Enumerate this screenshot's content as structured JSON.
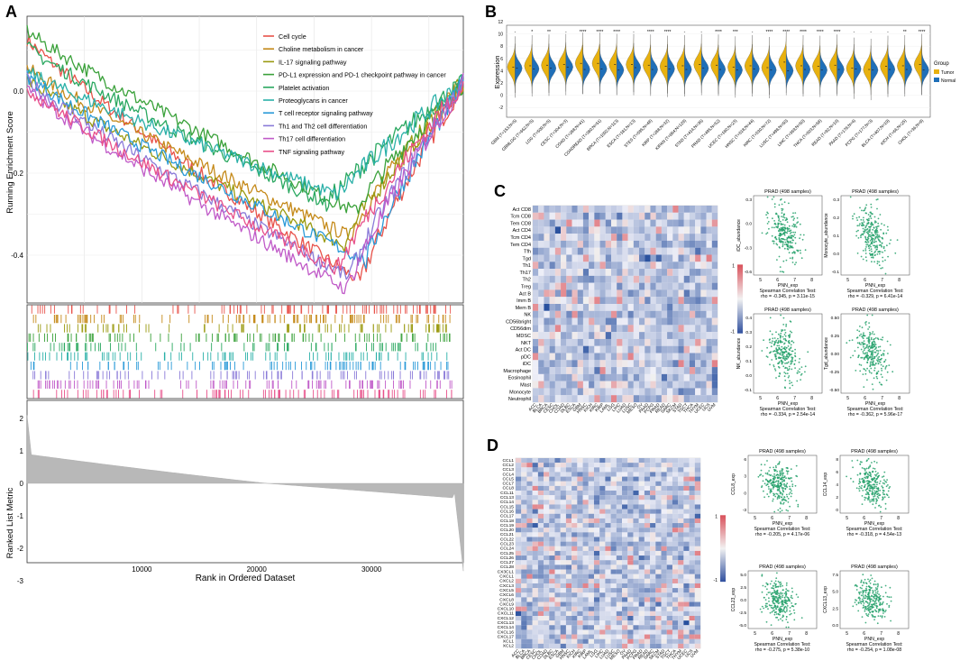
{
  "panel_labels": {
    "a": "A",
    "b": "B",
    "c": "C",
    "d": "D"
  },
  "colors": {
    "tumor": "#e8b10f",
    "normal": "#1f6fb8",
    "scatter": "#23a06a",
    "heat_hi": "#d9505a",
    "heat_lo": "#2f4f9e"
  },
  "chart_data": [
    {
      "id": "A",
      "type": "line",
      "title": "",
      "ylabel": "Running Enrichment Score",
      "ylabel2": "Ranked List Metric",
      "xlabel": "Rank in Ordered Dataset",
      "x_ticks": [
        "10000",
        "20000",
        "30000"
      ],
      "y_ticks": [
        "0.0",
        "-0.2",
        "-0.4"
      ],
      "y_ticks2": [
        "2",
        "1",
        "0",
        "-1",
        "-2",
        "-3"
      ],
      "series": [
        {
          "name": "Cell cycle",
          "color": "#e8524a",
          "min_rank": 29000,
          "min_es": -0.47,
          "start": 0.12
        },
        {
          "name": "Choline metabolism in cancer",
          "color": "#c58a1a",
          "min_rank": 28000,
          "min_es": -0.36,
          "start": 0.05
        },
        {
          "name": "IL-17 signaling pathway",
          "color": "#9a9a10",
          "min_rank": 27500,
          "min_es": -0.38,
          "start": 0.02
        },
        {
          "name": "PD-L1 expression and PD-1 checkpoint pathway in cancer",
          "color": "#3aa13a",
          "min_rank": 28500,
          "min_es": -0.3,
          "start": 0.14
        },
        {
          "name": "Platelet activation",
          "color": "#2aa860",
          "min_rank": 26000,
          "min_es": -0.28,
          "start": 0.1
        },
        {
          "name": "Proteoglycans in cancer",
          "color": "#2ab0a8",
          "min_rank": 27000,
          "min_es": -0.26,
          "start": 0.04
        },
        {
          "name": "T cell receptor signaling pathway",
          "color": "#2a9ad8",
          "min_rank": 29500,
          "min_es": -0.42,
          "start": 0.03
        },
        {
          "name": "Th1 and Th2 cell differentiation",
          "color": "#8a7ad8",
          "min_rank": 28000,
          "min_es": -0.46,
          "start": 0.02
        },
        {
          "name": "Th17 cell differentiation",
          "color": "#c05ac8",
          "min_rank": 27800,
          "min_es": -0.49,
          "start": 0.0
        },
        {
          "name": "TNF signaling pathway",
          "color": "#e8508a",
          "min_rank": 27000,
          "min_es": -0.44,
          "start": 0.0
        }
      ]
    },
    {
      "id": "B",
      "type": "violin",
      "ylabel": "Expression",
      "y_ticks": [
        "12",
        "10",
        "8",
        "6",
        "4",
        "2",
        "0",
        "-2"
      ],
      "legend_title": "Group",
      "legend": [
        "Tumor",
        "Normal"
      ],
      "categories": [
        "GBM (T=153;N=5)",
        "GBMLGG (T=662;N=5)",
        "LGG (T=509;N=5)",
        "CESC (T=304;N=3)",
        "COAD (T=288;N=41)",
        "COADREAD (T=380;N=51)",
        "BRCA (T=1092;N=113)",
        "ESCA (T=181;N=13)",
        "STES (T=595;N=48)",
        "KIRP (T=288;N=32)",
        "KIPAN (T=884;N=129)",
        "STAD (T=414;N=36)",
        "PRAD (T=495;N=52)",
        "UCEC (T=180;N=23)",
        "HNSC (T=518;N=44)",
        "KIRC (T=530;N=72)",
        "LUSC (T=498;N=50)",
        "LIHC (T=369;N=50)",
        "THCA (T=503;N=58)",
        "READ (T=92;N=10)",
        "PAAD (T=178;N=4)",
        "PCPG (T=177;N=3)",
        "BLCA (T=407;N=19)",
        "KICH (T=66;N=25)",
        "CHOL (T=36;N=9)"
      ],
      "significance": [
        "-",
        "*",
        "**",
        "-",
        "****",
        "****",
        "****",
        "-",
        "****",
        "****",
        "-",
        "-",
        "****",
        "***",
        "-",
        "****",
        "****",
        "****",
        "****",
        "****",
        "-",
        "-",
        "-",
        "**",
        "****"
      ],
      "tumor_median": [
        4.6,
        4.8,
        4.9,
        5.0,
        5.2,
        5.2,
        5.0,
        5.0,
        4.9,
        4.7,
        4.8,
        5.0,
        4.9,
        4.6,
        4.8,
        4.5,
        5.4,
        4.8,
        4.7,
        4.9,
        4.4,
        4.2,
        4.7,
        4.8,
        5.0
      ],
      "normal_median": [
        4.4,
        4.3,
        4.4,
        4.6,
        4.2,
        4.3,
        4.1,
        4.5,
        4.2,
        4.3,
        4.2,
        4.4,
        4.2,
        4.1,
        4.3,
        4.1,
        4.0,
        4.2,
        4.1,
        4.2,
        4.3,
        4.1,
        4.2,
        4.2,
        4.1
      ]
    },
    {
      "id": "C-heatmap",
      "type": "heatmap",
      "rows": [
        "Act CD8",
        "Tcm CD8",
        "Tem CD8",
        "Act CD4",
        "Tcm CD4",
        "Tem CD4",
        "Tfh",
        "Tgd",
        "Th1",
        "Th17",
        "Th2",
        "Treg",
        "Act B",
        "Imm B",
        "Mem B",
        "NK",
        "CD56bright",
        "CD56dim",
        "MDSC",
        "NKT",
        "Act DC",
        "pDC",
        "iDC",
        "Macrophage",
        "Eosinophil",
        "Mast",
        "Monocyte",
        "Neutrophil"
      ],
      "columns": [
        "ACC",
        "BLCA",
        "BRCA",
        "CESC",
        "CHOL",
        "COAD",
        "DLBC",
        "ESCA",
        "GBM",
        "HNSC",
        "KICH",
        "KIRC",
        "KIRP",
        "LAML",
        "LGG",
        "LIHC",
        "LUAD",
        "LUSC",
        "MESO",
        "OV",
        "PAAD",
        "PCPG",
        "PRAD",
        "READ",
        "SARC",
        "SKCM",
        "STAD",
        "TGCT",
        "THCA",
        "THYM",
        "UCEC",
        "UCS",
        "UVM"
      ],
      "colorbar_ticks": [
        "1",
        "-1"
      ]
    },
    {
      "id": "C-scatter",
      "type": "scatter",
      "plots": [
        {
          "title": "PRAD (498 samples)",
          "xlabel": "PNN_exp",
          "ylabel": "iDC_abundance",
          "stat1": "Spearman Correlation Test:",
          "stat2": "rho = -0.345, p = 3.11e-15",
          "x_ticks": [
            "5",
            "6",
            "7",
            "8"
          ],
          "y_ticks": [
            "0.3",
            "0.0",
            "-0.3",
            "-0.6"
          ],
          "rho": -0.345
        },
        {
          "title": "PRAD (498 samples)",
          "xlabel": "PNN_exp",
          "ylabel": "Monocyte_abundance",
          "stat1": "Spearman Correlation Test:",
          "stat2": "rho = -0.329, p = 6.41e-14",
          "x_ticks": [
            "5",
            "6",
            "7",
            "8"
          ],
          "y_ticks": [
            "0.3",
            "0.2",
            "0.1",
            "0.0",
            "-0.1"
          ],
          "rho": -0.329
        },
        {
          "title": "PRAD (498 samples)",
          "xlabel": "PNN_exp",
          "ylabel": "NK_abundance",
          "stat1": "Spearman Correlation Test:",
          "stat2": "rho = -0.334, p = 2.54e-14",
          "x_ticks": [
            "5",
            "6",
            "7",
            "8"
          ],
          "y_ticks": [
            "0.4",
            "0.3",
            "0.2",
            "0.1",
            "0.0",
            "-0.1"
          ],
          "rho": -0.334
        },
        {
          "title": "PRAD (498 samples)",
          "xlabel": "PNN_exp",
          "ylabel": "Tgd_abundance",
          "stat1": "Spearman Correlation Test:",
          "stat2": "rho = -0.362, p = 5.96e-17",
          "x_ticks": [
            "5",
            "6",
            "7",
            "8"
          ],
          "y_ticks": [
            "0.50",
            "0.25",
            "0.00",
            "-0.25",
            "-0.50"
          ],
          "rho": -0.362
        }
      ]
    },
    {
      "id": "D-heatmap",
      "type": "heatmap",
      "rows": [
        "CCL1",
        "CCL2",
        "CCL3",
        "CCL4",
        "CCL5",
        "CCL7",
        "CCL8",
        "CCL11",
        "CCL13",
        "CCL14",
        "CCL15",
        "CCL16",
        "CCL17",
        "CCL18",
        "CCL19",
        "CCL20",
        "CCL21",
        "CCL22",
        "CCL23",
        "CCL24",
        "CCL25",
        "CCL26",
        "CCL27",
        "CCL28",
        "CX3CL1",
        "CXCL1",
        "CXCL2",
        "CXCL3",
        "CXCL5",
        "CXCL6",
        "CXCL8",
        "CXCL9",
        "CXCL10",
        "CXCL11",
        "CXCL12",
        "CXCL13",
        "CXCL14",
        "CXCL16",
        "CXCL17",
        "XCL1",
        "XCL2"
      ],
      "columns": [
        "ACC",
        "BLCA",
        "BRCA",
        "CESC",
        "CHOL",
        "COAD",
        "DLBC",
        "ESCA",
        "GBM",
        "HNSC",
        "KICH",
        "KIRC",
        "KIRP",
        "LAML",
        "LGG",
        "LIHC",
        "LUAD",
        "LUSC",
        "MESO",
        "OV",
        "PAAD",
        "PCPG",
        "PRAD",
        "READ",
        "SARC",
        "SKCM",
        "STAD",
        "TGCT",
        "THCA",
        "THYM",
        "UCEC",
        "UCS",
        "UVM"
      ],
      "colorbar_ticks": [
        "1",
        "-1"
      ]
    },
    {
      "id": "D-scatter",
      "type": "scatter",
      "plots": [
        {
          "title": "PRAD (498 samples)",
          "xlabel": "PNN_exp",
          "ylabel": "CCL8_exp",
          "stat1": "Spearman Correlation Test:",
          "stat2": "rho = -0.205, p = 4.17e-06",
          "x_ticks": [
            "5",
            "6",
            "7",
            "8"
          ],
          "y_ticks": [
            "6",
            "3",
            "0",
            "-3"
          ],
          "rho": -0.205
        },
        {
          "title": "PRAD (498 samples)",
          "xlabel": "PNN_exp",
          "ylabel": "CCL14_exp",
          "stat1": "Spearman Correlation Test:",
          "stat2": "rho = -0.318, p = 4.54e-13",
          "x_ticks": [
            "5",
            "6",
            "7",
            "8"
          ],
          "y_ticks": [
            "8",
            "6",
            "4",
            "2",
            "0"
          ],
          "rho": -0.318
        },
        {
          "title": "PRAD (498 samples)",
          "xlabel": "PNN_exp",
          "ylabel": "CCL23_exp",
          "stat1": "Spearman Correlation Test:",
          "stat2": "rho = -0.275, p = 5.38e-10",
          "x_ticks": [
            "5",
            "6",
            "7",
            "8"
          ],
          "y_ticks": [
            "5.0",
            "2.5",
            "0.0",
            "-2.5",
            "-5.0"
          ],
          "rho": -0.275
        },
        {
          "title": "PRAD (498 samples)",
          "xlabel": "PNN_exp",
          "ylabel": "CXCL13_exp",
          "stat1": "Spearman Correlation Test:",
          "stat2": "rho = -0.254, p = 1.08e-08",
          "x_ticks": [
            "5",
            "6",
            "7",
            "8"
          ],
          "y_ticks": [
            "7.5",
            "5.0",
            "2.5",
            "0.0"
          ],
          "rho": -0.254
        }
      ]
    }
  ]
}
